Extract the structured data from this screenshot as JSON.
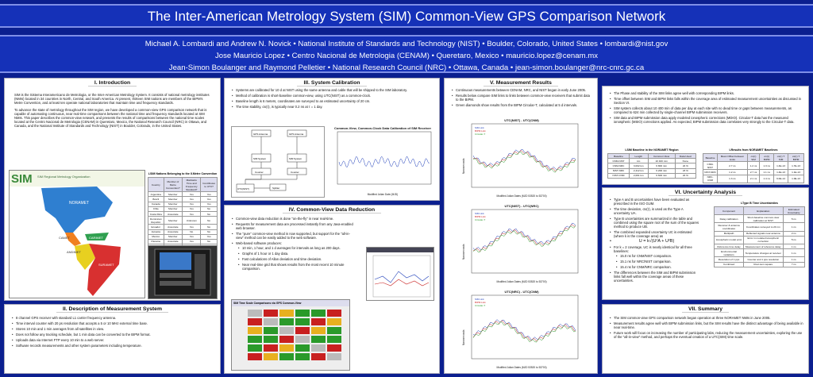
{
  "title": "The Inter-American Metrology System (SIM) Common-View GPS Comparison Network",
  "authors": [
    "Michael A. Lombardi and Andrew N. Novick  •  National Institute of Standards and Technology (NIST)  •  Boulder, Colorado, United States  •  lombardi@nist.gov",
    "Jose Mauricio Lopez  •  Centro Nacional de Metrologia (CENAM)  •  Queretaro, Mexico  •  mauricio.lopez@cenam.mx",
    "Jean-Simon Boulanger and Raymond Pelletier  •  National Research Council (NRC)  •  Ottawa, Canada  •  jean-simon.boulanger@nrc-cnrc.gc.ca"
  ],
  "intro": {
    "heading": "I. Introduction",
    "p1": "SIM is the Sistema Interamericano de Metrologia, or the Inter-American Metrology System. It consists of national metrology institutes (NMIs) located in 34 countries in North, Central, and South America. At present, thirteen SIM nations are members of the BIPM's Metre Convention, and at least ten operate national laboratories that maintain time and frequency standards.",
    "p2": "To advance the state of metrology throughout the SIM region, we have developed a common-view GPS comparison network that is capable of automating continuous, near real-time comparisons between the national time and frequency standards located at SIM NMIs. This paper describes the common-view network, and presents the results of comparisons between the national time scales located at the Centro Nacional de Metrologia (CENAM) in Queretaro, Mexico, the National Research Council (NRC) in Ottawa, and Canada, and the National Institute of Standards and Technology (NIST) in Boulder, Colorado, in the United States.",
    "table_caption": "LSIM Nations Belonging to the II.Metre Convention",
    "table_headers": [
      "Country",
      "Member of Metre Convention?",
      "Maintains Time and Frequency Standard?",
      "Contributes to UTC?"
    ],
    "table_rows": [
      [
        "Argentina",
        "Member",
        "Yes",
        "Yes"
      ],
      [
        "Brazil",
        "Member",
        "Yes",
        "Yes"
      ],
      [
        "Canada",
        "Member",
        "Yes",
        "Yes"
      ],
      [
        "Chile",
        "Member",
        "Yes",
        "No"
      ],
      [
        "Costa Rica",
        "Associate",
        "Yes",
        "No"
      ],
      [
        "Dominican Republic",
        "Member",
        "Unknown",
        "No"
      ],
      [
        "Ecuador",
        "Associate",
        "Yes",
        "No"
      ],
      [
        "Jamaica",
        "Associate",
        "No",
        "No"
      ],
      [
        "Mexico",
        "Member",
        "Yes",
        "Yes"
      ],
      [
        "Panama",
        "Associate",
        "Yes",
        "No"
      ],
      [
        "Peru",
        "Associate",
        "Yes",
        "No"
      ],
      [
        "United States",
        "Member",
        "Yes",
        "Yes"
      ],
      [
        "Uruguay",
        "Member",
        "Unknown",
        "No"
      ],
      [
        "Venezuela",
        "Member",
        "Unknown",
        "No"
      ]
    ],
    "map_logo": "SIM",
    "map_title": "SIM Regional Metrology Organization",
    "map_regions": [
      "NORAMET",
      "CAMET",
      "CARIMET",
      "ANDIMET",
      "SURAMET"
    ]
  },
  "description": {
    "heading": "II. Description of Measurement System",
    "items": [
      "8 channel GPS receiver with standard L1 carrier frequency antenna.",
      "Time interval counter with 20 ps resolution that accepts a 5 or 10 MHz external time base.",
      "Stores 10 min and 1 min averages from all satellites in view.",
      "Does not follow any tracking schedule, but 1 min data can be converted to the BIPM format.",
      "Uploads data via Internet FTP every 10 min to a web server.",
      "Software records measurements and other system parameters including temperature."
    ]
  },
  "calibration": {
    "heading": "III. System Calibration",
    "items": [
      "Systems are calibrated for 10 d at NIST using the same antenna and cable that will be shipped to the SIM laboratory.",
      "Method of calibration is short-baseline common-view, using UTC(NIST) as a common-clock.",
      "Baseline length is 6 meters, coordinates are surveyed to an estimated uncertainty of 20 cm.",
      "The time stability, σx(τ), is typically near 0.2 ns at τ = 1 day."
    ],
    "block_labels": [
      "UTC(NIST)",
      "GPS Antenna",
      "GPS Antenna",
      "Splitter",
      "SIM System",
      "SIM System",
      "Counter",
      "Counter"
    ],
    "chart_title": "Common-View, Common-Clock Data Calibration of SIM Receiver",
    "chart_xlabel": "Modified Julian Date (MJD)",
    "chart_ylabel": "Nanoseconds"
  },
  "reduction": {
    "heading": "IV. Common-View Data Reduction",
    "items": [
      "Common-view data reduction is done \"on-the-fly\" in near real-time.",
      "Requests for measurement data are processed instantly from any Java-enabled web browser.",
      "The \"pure\" common-view method is now supported, but support for the \"all-in-view\" method can be easily added to the web software.",
      "Web-based software produces:"
    ],
    "subitems": [
      "10 min, 1 hour, and 1 d averages for intervals as long as 200 days.",
      "Graphs of 1 hour or 1 day data.",
      "Fast calculations of Allan deviation and time deviation.",
      "Near real-time grid that shows results from the most recent 10 minute comparison."
    ],
    "grid_title": "SIM Time Scale Comparisons via GPS Common-View"
  },
  "measurement": {
    "heading": "V. Measurement Results",
    "items": [
      "Continuous measurements between CENAM, NRC, and NIST began in early June 2005.",
      "Results below compare SIM links to links between common-view receivers that submit data to the BIPM.",
      "Green diamonds show results from the BIPM Circular-T, calculated at 5 d intervals."
    ],
    "charts": [
      {
        "title": "UTC(NIST) - UTC(CNM)",
        "xlabel": "Modified Julian Dates (MJD 53520 to 53700)",
        "ylabel": "Nanoseconds"
      },
      {
        "title": "UTC(NIST) - UTC(NRC)",
        "xlabel": "Modified Julian Dates (MJD 53520 to 53700)",
        "ylabel": "Nanoseconds"
      },
      {
        "title": "UTC(NRC) - UTC(CNM)",
        "xlabel": "Modified Julian Dates (MJD 53520 to 53700)",
        "ylabel": "Nanoseconds"
      }
    ],
    "legend": [
      "SIM Link",
      "BIPM Link",
      "Circular-T"
    ]
  },
  "right_top": {
    "items": [
      "The Phase and stability of the SIM links agree well with corresponding BIPM links.",
      "Time offset between SIM and BIPM links falls within the coverage area of estimated measurement uncertainties as discussed in Section VI.",
      "SIM system collects about 10 400 min of data per day at each site with no dead time or gaps between measurements, as compared to 624 min collected by single-channel BIPM submission receivers.",
      "SIM data and BIPM submission data apply modeled ionospheric corrections (MDIO). Circular-T data has the measured ionospheric (MSIO) corrections applied. As expected, BIPM submission data correlates very strongly to the Circular-T data."
    ],
    "t1_caption": "LSIM Baseline in the NORAMET Region",
    "t1_headers": [
      "Baseline",
      "Length",
      "Common View",
      "Data Used"
    ],
    "t1_rows": [
      [
        "CNM-NIST",
        "km",
        "10 400 min",
        "None"
      ],
      [
        "CNM-NRC",
        "3,002 km",
        "9 800 min",
        "22 %"
      ],
      [
        "NIST-NRC",
        "2,412 km",
        "9 200 min",
        "23 %"
      ],
      [
        "NIST-CNM",
        "2,061 km",
        "9 600 min",
        "22 %"
      ]
    ],
    "t2_caption": "LResults from NORAMET Baselines",
    "t2_headers": [
      "Baseline",
      "Mean Offset between Links",
      "σx(τ) SIM",
      "σx(τ) BIPM",
      "σx(τ) T SIM",
      "σx(τ) T BIPM"
    ],
    "t2_rows": [
      [
        "CNM-NIST",
        "2.7 ns",
        "1.2 ns",
        "1.3 ns",
        "1.4E-13",
        "1.7E-13"
      ],
      [
        "NIST-NRC",
        "1.2 ns",
        "2.7 ns",
        "1.1 ns",
        "1.4E-13",
        "1.1E-13"
      ],
      [
        "NRC-CNM",
        "1.3 ns",
        "2.1 ns",
        "1.4 ns",
        "6.0E-14",
        "1.0E-13"
      ]
    ]
  },
  "uncertainty": {
    "heading": "VI. Uncertainty Analysis",
    "items": [
      "Type A and B uncertainties have been evaluated as prescribed in the ISO GUM.",
      "The time deviation, σx(τ), is used as the Type A uncertainty UA.",
      "Type B uncertainties are summarized in the table and combined using the square root of the sum of the squares method to produce UB.",
      "The combined expanded uncertainty UC is estimated (where k is the coverage area) as",
      "For k = 2 coverage, UC is nearly identical for all three baselines:"
    ],
    "formula": "U = k√(U²A + U²B)",
    "subitems": [
      "15.0 ns for CNM/NIST comparison.",
      "15.1 ns for NRC/NIST comparison.",
      "15.4 ns for CNM/NRC comparison."
    ],
    "last": "The differences between the SIM and BIPM submission links fall well within the coverage areas of these uncertainties.",
    "table_caption": "LType B Time Uncertainties",
    "table_headers": [
      "Component",
      "Explanation",
      "Estimated Uncertainty"
    ],
    "table_rows": [
      [
        "Delay calibration",
        "Short-baseline common-view calibration at NIST",
        "5 ns"
      ],
      [
        "Receiver & antenna coordinates",
        "Coordinates surveyed to 20 cm",
        "1 ns"
      ],
      [
        "Multipath",
        "Reflected signals near antenna",
        "2 ns"
      ],
      [
        "Ionospheric model error",
        "Error in modeled ionospheric correction",
        "5 ns"
      ],
      [
        "Reference time delay",
        "Measurement of reference delay",
        "1 ns"
      ],
      [
        "Environmental variations",
        "Temperature changes at receiver",
        "1 ns"
      ],
      [
        "Resolution of 1 pps",
        "Counter and 1 pps resolution",
        "1 ns"
      ],
      [
        "Combined",
        "Root-sum-square",
        "7 ns"
      ]
    ]
  },
  "summary": {
    "heading": "VII. Summary",
    "items": [
      "The SIM common-view GPS comparison network began operation at three NORAMET NMIs in June 2005.",
      "Measurement results agree well with BIPM submission links, but the SIM results have the distinct advantage of being available in near real-time.",
      "Future work will focus on increasing the number of participating labs, reducing the measurement uncertainties, exploring the use of the \"all-in-view\" method, and perhaps the eventual creation of a UTC(SIM) time scale."
    ]
  }
}
